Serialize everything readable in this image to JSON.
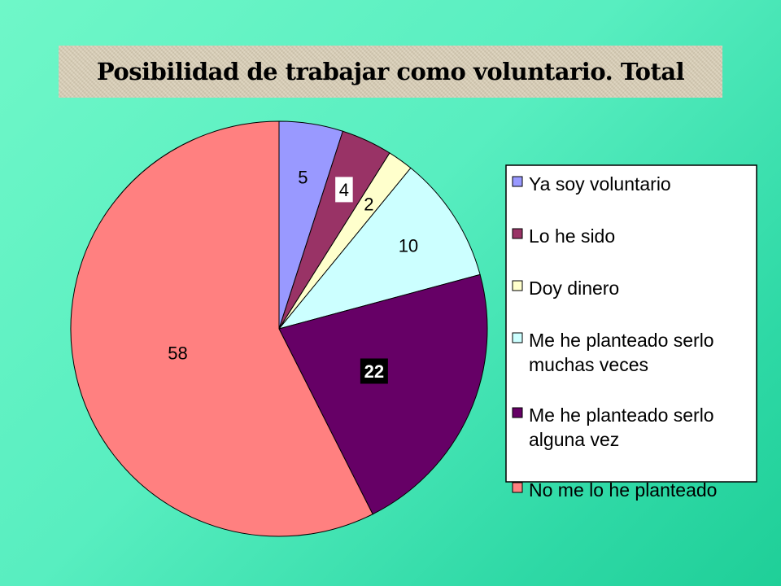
{
  "chart_data": {
    "type": "pie",
    "title": "Posibilidad de trabajar como voluntario. Total",
    "categories": [
      "Ya soy voluntario",
      "Lo he sido",
      "Doy dinero",
      "Me he planteado serlo muchas veces",
      "Me he planteado serlo alguna vez",
      "No me lo he planteado"
    ],
    "legend_lines": [
      [
        "Ya soy voluntario"
      ],
      [
        "Lo he sido"
      ],
      [
        "Doy dinero"
      ],
      [
        "Me he planteado serlo",
        "muchas veces"
      ],
      [
        "Me he planteado serlo",
        "alguna vez"
      ],
      [
        "No me lo he planteado"
      ]
    ],
    "values": [
      5,
      4,
      2,
      10,
      22,
      58
    ],
    "colors": [
      "#9999ff",
      "#993366",
      "#ffffcc",
      "#ccffff",
      "#660066",
      "#ff8080"
    ],
    "legend_position": "right"
  }
}
